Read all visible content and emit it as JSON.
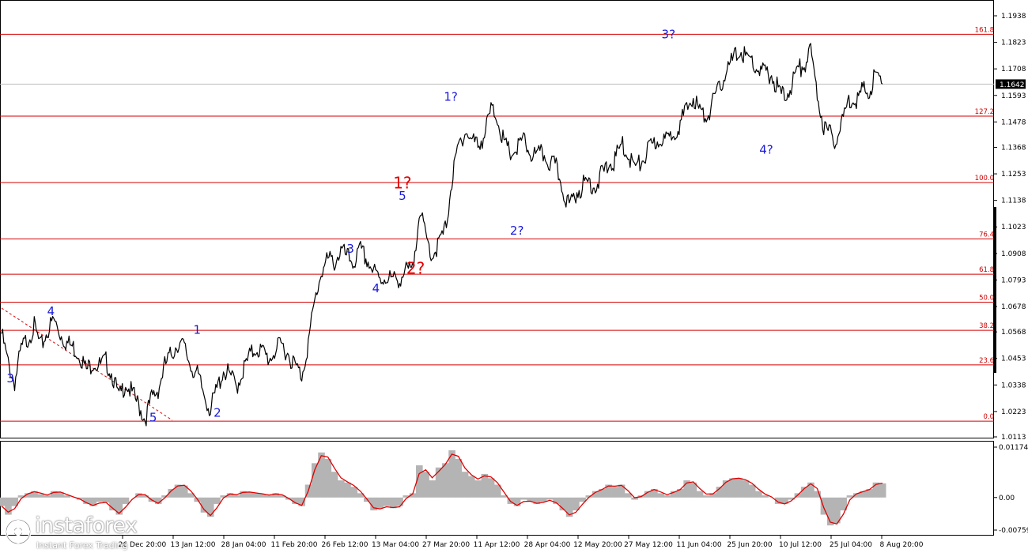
{
  "chart_data": [
    {
      "type": "line",
      "name": "price",
      "ylim": [
        1.0113,
        1.1938
      ],
      "price_labels": [
        "1.1938",
        "1.1823",
        "1.1708",
        "1.1593",
        "1.1478",
        "1.1368",
        "1.1253",
        "1.1138",
        "1.1023",
        "1.0908",
        "1.0793",
        "1.0678",
        "1.0568",
        "1.0453",
        "1.0338",
        "1.0223",
        "1.0113"
      ],
      "price_levels": [
        1.1938,
        1.1823,
        1.1708,
        1.1593,
        1.1478,
        1.1368,
        1.1253,
        1.1138,
        1.1023,
        1.0908,
        1.0793,
        1.0678,
        1.0568,
        1.0453,
        1.0338,
        1.0223,
        1.0113
      ],
      "current_price": "1.1642",
      "current_price_value": 1.1642,
      "x_labels": [
        "26 Dec 20:00",
        "13 Jan 12:00",
        "28 Jan 04:00",
        "11 Feb 20:00",
        "26 Feb 12:00",
        "13 Mar 04:00",
        "27 Mar 20:00",
        "11 Apr 12:00",
        "28 Apr 04:00",
        "12 May 20:00",
        "27 May 12:00",
        "11 Jun 04:00",
        "25 Jun 20:00",
        "10 Jul 12:00",
        "25 Jul 04:00",
        "8 Aug 20:00"
      ],
      "fib_levels": [
        {
          "label": "161.8",
          "price": 1.1858
        },
        {
          "label": "127.2",
          "price": 1.1503
        },
        {
          "label": "100.0",
          "price": 1.1215
        },
        {
          "label": "76.4",
          "price": 1.0971
        },
        {
          "label": "61.8",
          "price": 1.0818
        },
        {
          "label": "50.0",
          "price": 1.0697
        },
        {
          "label": "38.2",
          "price": 1.0575
        },
        {
          "label": "23.6",
          "price": 1.0425
        },
        {
          "label": "0.0",
          "price": 1.0181
        }
      ],
      "wave_labels": [
        {
          "text": "3",
          "color": "blue",
          "price": 1.035,
          "pos": 0.01
        },
        {
          "text": "4",
          "color": "blue",
          "price": 1.064,
          "pos": 0.056
        },
        {
          "text": "5",
          "color": "blue",
          "price": 1.018,
          "pos": 0.172
        },
        {
          "text": "1",
          "color": "blue",
          "price": 1.056,
          "pos": 0.222
        },
        {
          "text": "2",
          "color": "blue",
          "price": 1.02,
          "pos": 0.245
        },
        {
          "text": "3",
          "color": "blue",
          "price": 1.091,
          "pos": 0.396
        },
        {
          "text": "4",
          "color": "blue",
          "price": 1.074,
          "pos": 0.425
        },
        {
          "text": "1?",
          "color": "red",
          "price": 1.119,
          "pos": 0.455
        },
        {
          "text": "5",
          "color": "blue",
          "price": 1.114,
          "pos": 0.455
        },
        {
          "text": "2?",
          "color": "red",
          "price": 1.082,
          "pos": 0.47
        },
        {
          "text": "1?",
          "color": "blue",
          "price": 1.157,
          "pos": 0.51
        },
        {
          "text": "2?",
          "color": "blue",
          "price": 1.099,
          "pos": 0.585
        },
        {
          "text": "3?",
          "color": "blue",
          "price": 1.184,
          "pos": 0.757
        },
        {
          "text": "4?",
          "color": "blue",
          "price": 1.134,
          "pos": 0.868
        }
      ],
      "series": [
        {
          "name": "",
          "values": [
            1.056,
            1.043,
            1.035,
            1.049,
            1.054,
            1.059,
            1.05,
            1.057,
            1.062,
            1.056,
            1.052,
            1.05,
            1.047,
            1.04,
            1.044,
            1.042,
            1.044,
            1.038,
            1.028,
            1.035,
            1.03,
            1.025,
            1.019,
            1.028,
            1.032,
            1.042,
            1.047,
            1.052,
            1.05,
            1.042,
            1.038,
            1.03,
            1.023,
            1.032,
            1.04,
            1.038,
            1.033,
            1.04,
            1.046,
            1.05,
            1.048,
            1.045,
            1.049,
            1.051,
            1.047,
            1.042,
            1.038,
            1.052,
            1.07,
            1.083,
            1.088,
            1.087,
            1.092,
            1.089,
            1.087,
            1.092,
            1.088,
            1.083,
            1.079,
            1.081,
            1.079,
            1.08,
            1.083,
            1.083,
            1.11,
            1.098,
            1.09,
            1.095,
            1.101,
            1.122,
            1.137,
            1.144,
            1.14,
            1.138,
            1.142,
            1.153,
            1.15,
            1.138,
            1.134,
            1.136,
            1.14,
            1.134,
            1.133,
            1.134,
            1.13,
            1.128,
            1.119,
            1.111,
            1.117,
            1.12,
            1.122,
            1.12,
            1.125,
            1.129,
            1.131,
            1.138,
            1.134,
            1.128,
            1.13,
            1.135,
            1.138,
            1.141,
            1.139,
            1.144,
            1.147,
            1.153,
            1.159,
            1.152,
            1.15,
            1.156,
            1.162,
            1.17,
            1.174,
            1.179,
            1.176,
            1.174,
            1.17,
            1.169,
            1.168,
            1.162,
            1.158,
            1.164,
            1.17,
            1.173,
            1.178,
            1.16,
            1.146,
            1.142,
            1.14,
            1.15,
            1.158,
            1.158,
            1.161,
            1.162,
            1.168,
            1.1642
          ]
        }
      ]
    },
    {
      "type": "area",
      "name": "oscillator",
      "ylim": [
        -0.00759,
        0.01174
      ],
      "y_labels": [
        "0.01174",
        "0.00",
        "-0.00759"
      ],
      "y_levels": [
        0.01174,
        0.0,
        -0.00759
      ],
      "series": [
        {
          "name": "",
          "values": [
            -0.002,
            -0.004,
            -0.002,
            0.0005,
            0.001,
            0.0015,
            0.0008,
            0.0005,
            0.0015,
            0.0012,
            0.0005,
            0.0,
            -0.0005,
            -0.0015,
            -0.002,
            -0.001,
            -0.0012,
            -0.003,
            -0.004,
            -0.0015,
            0.0,
            0.001,
            0.0005,
            -0.001,
            -0.0015,
            0.0005,
            0.002,
            0.003,
            0.0028,
            0.001,
            -0.001,
            -0.0035,
            -0.0045,
            -0.0015,
            0.0005,
            0.001,
            0.0005,
            0.0015,
            0.0012,
            0.001,
            0.0008,
            0.0005,
            0.001,
            0.0005,
            -0.0005,
            -0.0015,
            -0.002,
            0.003,
            0.008,
            0.0105,
            0.009,
            0.006,
            0.004,
            0.0035,
            0.0025,
            0.001,
            -0.001,
            -0.003,
            -0.0025,
            -0.002,
            -0.0025,
            -0.002,
            0.0005,
            0.001,
            0.0075,
            0.006,
            0.004,
            0.007,
            0.008,
            0.011,
            0.009,
            0.006,
            0.005,
            0.004,
            0.0055,
            0.0045,
            0.003,
            0.0005,
            -0.0015,
            -0.002,
            -0.0005,
            -0.001,
            -0.0015,
            -0.001,
            -0.0005,
            -0.0015,
            -0.003,
            -0.0045,
            -0.003,
            -0.001,
            0.0005,
            0.0015,
            0.002,
            0.003,
            0.0025,
            0.003,
            0.001,
            -0.0005,
            0.0005,
            0.0015,
            0.002,
            0.001,
            0.0005,
            0.0015,
            0.002,
            0.004,
            0.0035,
            0.0015,
            0.0005,
            0.001,
            0.0025,
            0.004,
            0.0045,
            0.0045,
            0.004,
            0.003,
            0.0015,
            0.0005,
            0.0,
            -0.0015,
            -0.0015,
            -0.0005,
            0.001,
            0.0025,
            0.0035,
            0.0015,
            -0.004,
            -0.0065,
            -0.006,
            -0.003,
            0.0005,
            0.001,
            0.0015,
            0.002,
            0.0035,
            0.0033
          ]
        }
      ]
    }
  ],
  "branding": {
    "name": "instaforex",
    "tagline": "Instant Forex Trading",
    "icon": "instaforex-logo-icon"
  }
}
